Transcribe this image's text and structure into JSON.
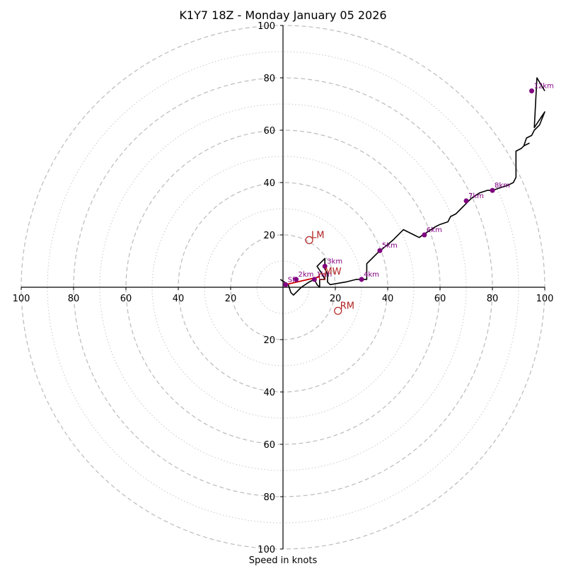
{
  "chart_data": {
    "type": "hodograph",
    "title": "K1Y7 18Z - Monday January 05 2026",
    "xlabel": "Speed in knots",
    "range": [
      -100,
      100
    ],
    "rings_major": [
      20,
      40,
      60,
      80,
      100
    ],
    "rings_minor": [
      10,
      30,
      50,
      70,
      90
    ],
    "x_tick_labels": [
      {
        "value": -100,
        "label": "100"
      },
      {
        "value": -80,
        "label": "80"
      },
      {
        "value": -60,
        "label": "60"
      },
      {
        "value": -40,
        "label": "40"
      },
      {
        "value": -20,
        "label": "20"
      },
      {
        "value": 20,
        "label": "20"
      },
      {
        "value": 40,
        "label": "40"
      },
      {
        "value": 60,
        "label": "60"
      },
      {
        "value": 80,
        "label": "80"
      },
      {
        "value": 100,
        "label": "100"
      }
    ],
    "y_tick_labels": [
      {
        "value": 100,
        "label": "100"
      },
      {
        "value": 80,
        "label": "80"
      },
      {
        "value": 60,
        "label": "60"
      },
      {
        "value": 40,
        "label": "40"
      },
      {
        "value": 20,
        "label": "20"
      },
      {
        "value": -20,
        "label": "20"
      },
      {
        "value": -40,
        "label": "40"
      },
      {
        "value": -60,
        "label": "60"
      },
      {
        "value": -80,
        "label": "80"
      },
      {
        "value": -100,
        "label": "100"
      }
    ],
    "trace": {
      "color": "#000000",
      "points": [
        [
          -1,
          3
        ],
        [
          2,
          1
        ],
        [
          3,
          -2
        ],
        [
          4,
          -3
        ],
        [
          7,
          0
        ],
        [
          10,
          2
        ],
        [
          12,
          3
        ],
        [
          13,
          1
        ],
        [
          14,
          0
        ],
        [
          14,
          3
        ],
        [
          16,
          3
        ],
        [
          15,
          5
        ],
        [
          13,
          8
        ],
        [
          16,
          11
        ],
        [
          16,
          7
        ],
        [
          17,
          5
        ],
        [
          17,
          2
        ],
        [
          18,
          1
        ],
        [
          24,
          2
        ],
        [
          28,
          3
        ],
        [
          30,
          3
        ],
        [
          32,
          3
        ],
        [
          32,
          9
        ],
        [
          36,
          13
        ],
        [
          42,
          18
        ],
        [
          46,
          22
        ],
        [
          50,
          20
        ],
        [
          52,
          19
        ],
        [
          55,
          21
        ],
        [
          58,
          23
        ],
        [
          60,
          24
        ],
        [
          63,
          25
        ],
        [
          64,
          27
        ],
        [
          66,
          28
        ],
        [
          68,
          30
        ],
        [
          70,
          32
        ],
        [
          72,
          34
        ],
        [
          75,
          36
        ],
        [
          78,
          37
        ],
        [
          80,
          37
        ],
        [
          83,
          38
        ],
        [
          86,
          39
        ],
        [
          88,
          40
        ],
        [
          89,
          42
        ],
        [
          89,
          46
        ],
        [
          89,
          52
        ],
        [
          91,
          53
        ],
        [
          92,
          54
        ],
        [
          94,
          55
        ],
        [
          92,
          54
        ],
        [
          93,
          57
        ],
        [
          95,
          58
        ],
        [
          96,
          60
        ],
        [
          98,
          62
        ],
        [
          100,
          67
        ],
        [
          98,
          64
        ],
        [
          96,
          61
        ],
        [
          97,
          80
        ],
        [
          100,
          75
        ]
      ]
    },
    "height_markers": [
      {
        "label": "Sfc",
        "u": 1,
        "v": 1
      },
      {
        "label": "1km",
        "u": 12,
        "v": 3
      },
      {
        "label": "2km",
        "u": 5,
        "v": 3
      },
      {
        "label": "3km",
        "u": 16,
        "v": 8
      },
      {
        "label": "4km",
        "u": 30,
        "v": 3
      },
      {
        "label": "5km",
        "u": 37,
        "v": 14
      },
      {
        "label": "6km",
        "u": 54,
        "v": 20
      },
      {
        "label": "7km",
        "u": 70,
        "v": 33
      },
      {
        "label": "8km",
        "u": 80,
        "v": 37
      },
      {
        "label": "12km",
        "u": 95,
        "v": 75
      }
    ],
    "storm_motions": [
      {
        "label": "LM",
        "u": 10,
        "v": 18
      },
      {
        "label": "MW",
        "u": 15,
        "v": 4
      },
      {
        "label": "RM",
        "u": 21,
        "v": -9
      }
    ],
    "shear_vector": {
      "from": [
        1,
        1
      ],
      "to": [
        14,
        4
      ],
      "color": "#cc0000"
    },
    "marker_color": "#800080",
    "motion_color": "#b22222"
  }
}
